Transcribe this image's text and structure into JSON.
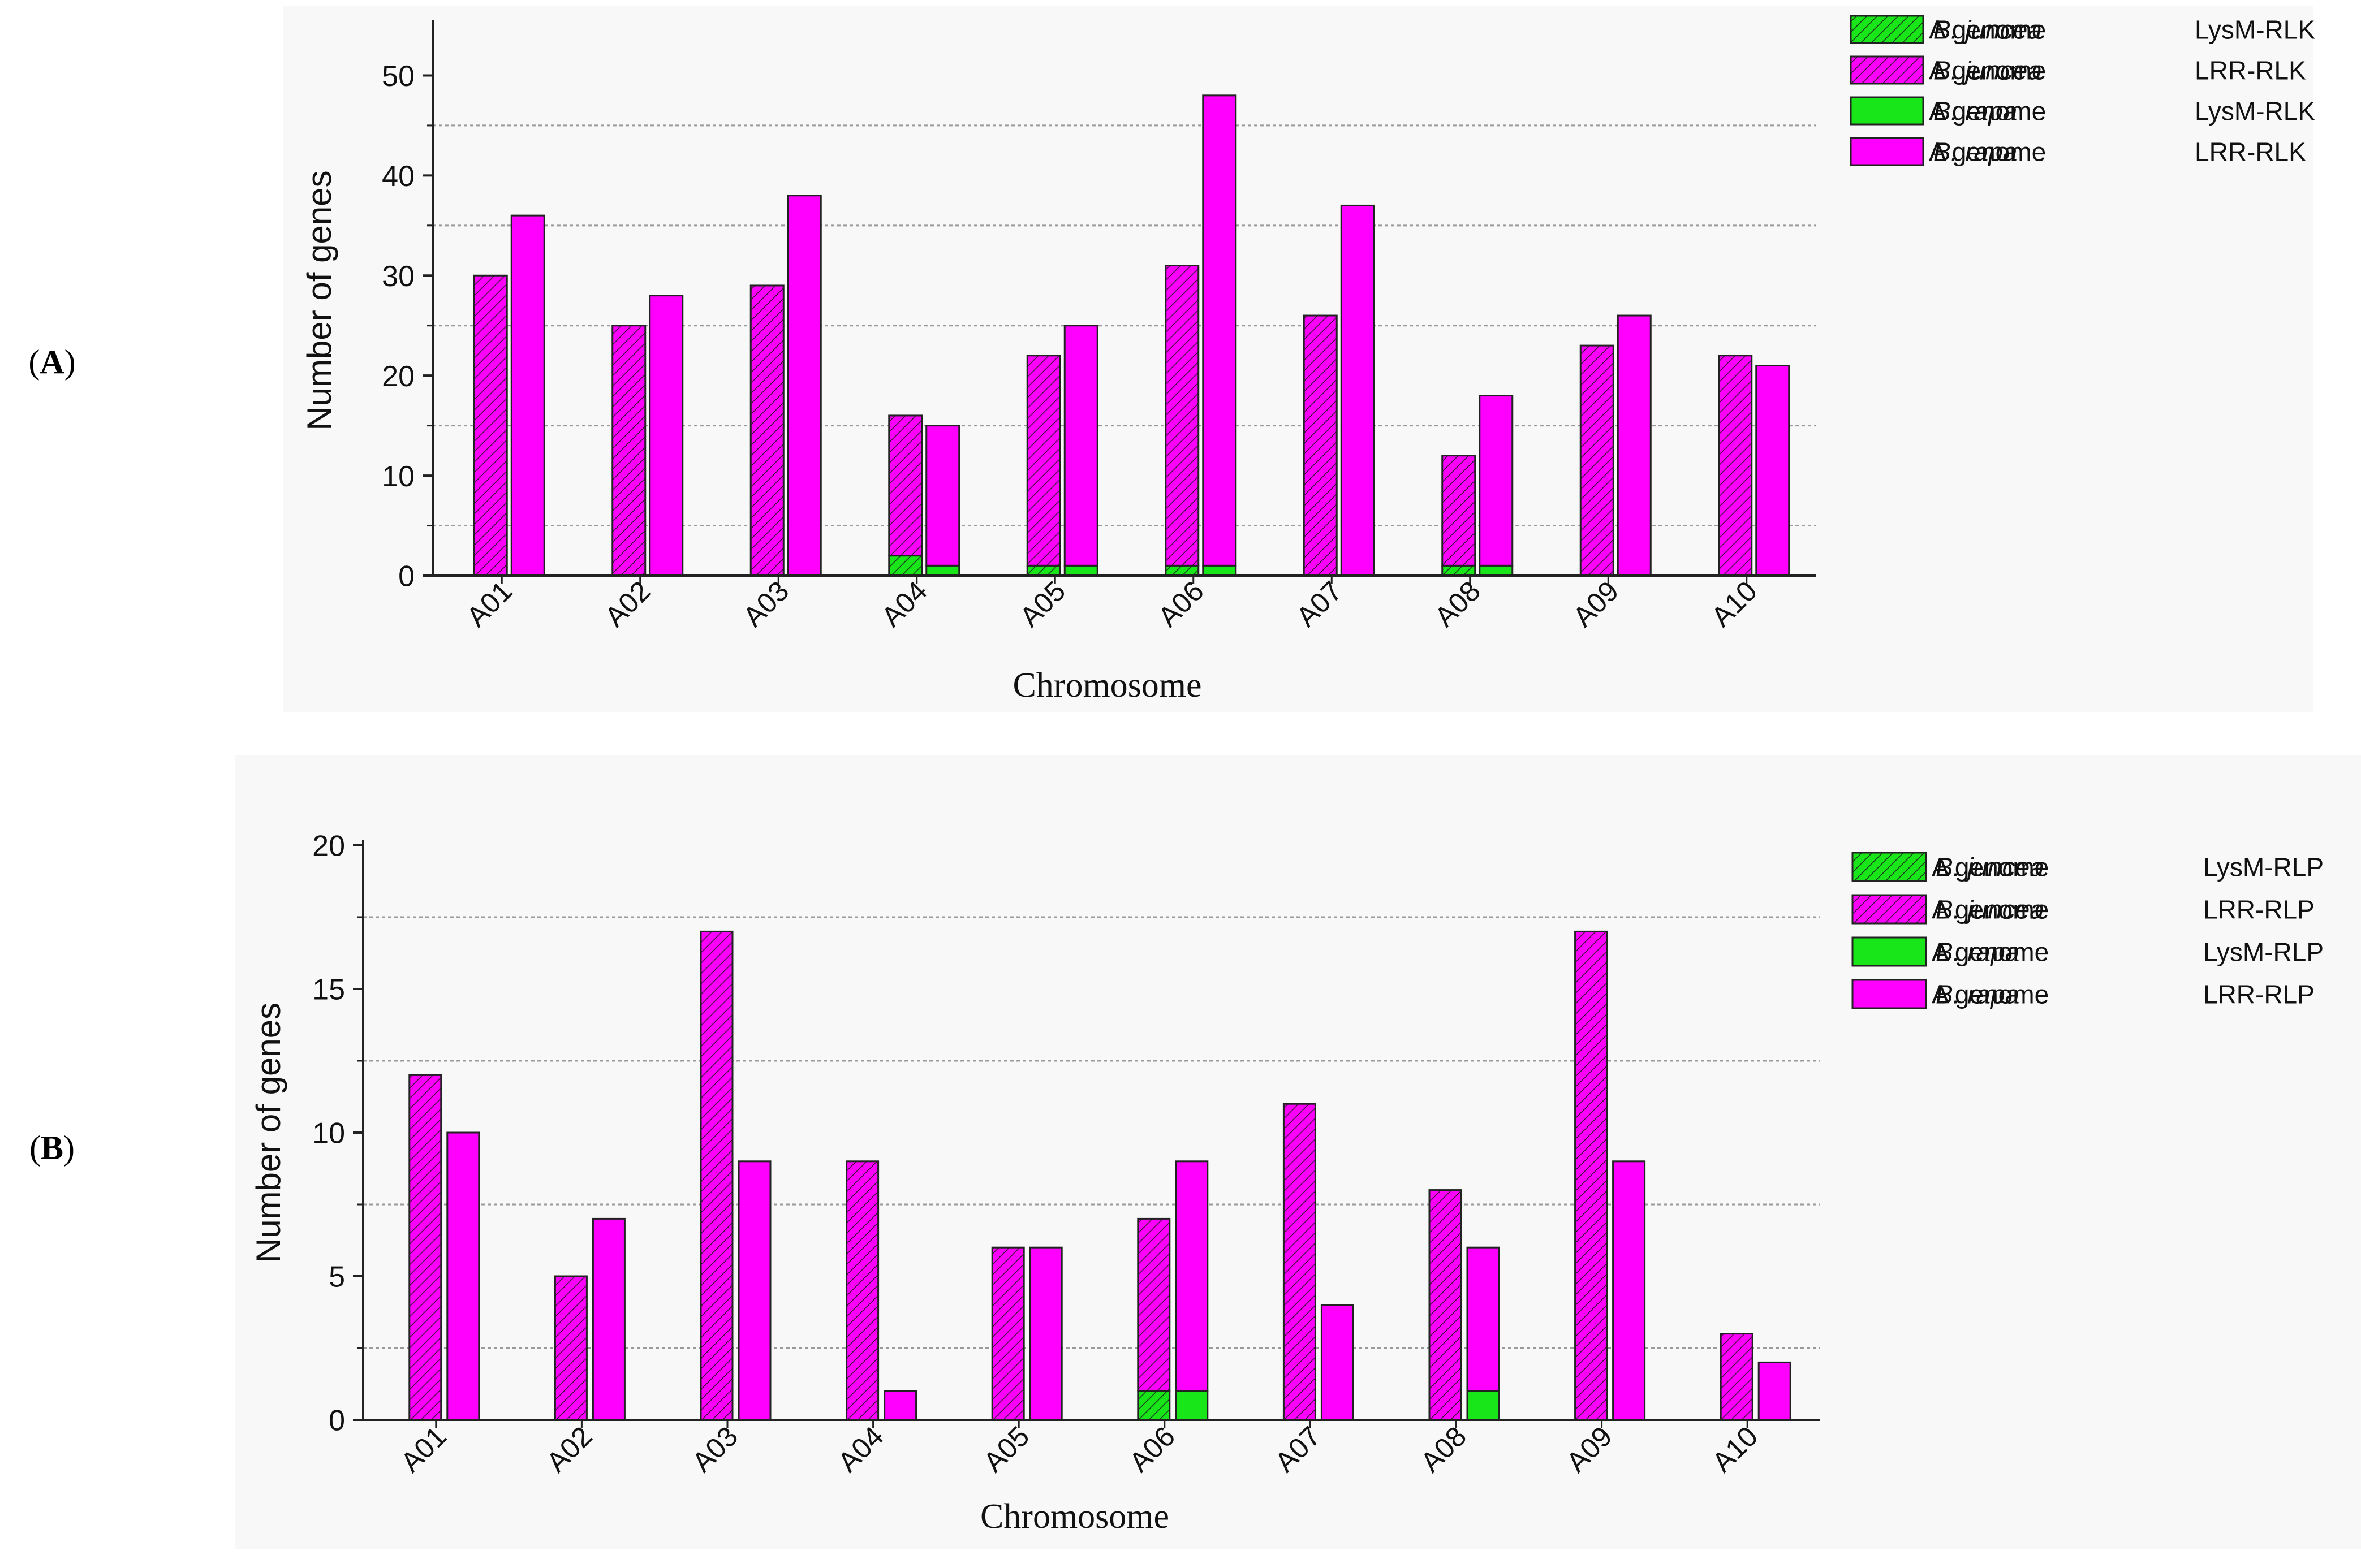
{
  "panels": [
    {
      "letter": "A",
      "paren_open": "(",
      "paren_close": ")"
    },
    {
      "letter": "B",
      "paren_open": "(",
      "paren_close": ")"
    }
  ],
  "colors": {
    "lysm": "#19e619",
    "lrr": "#ff00ff",
    "hatch": "#1a1a1a",
    "axis": "#222222",
    "grid": "#9a9a9a",
    "bg": "#f8f8f8"
  },
  "chart_data": [
    {
      "type": "bar",
      "stacked": true,
      "title": "",
      "xlabel": "Chromosome",
      "ylabel": "Number of genes",
      "ylim": [
        0,
        55
      ],
      "yticks": [
        0,
        10,
        20,
        30,
        40,
        50
      ],
      "gridlines": [
        5,
        15,
        25,
        35,
        45
      ],
      "categories": [
        "A01",
        "A02",
        "A03",
        "A04",
        "A05",
        "A06",
        "A07",
        "A08",
        "A09",
        "A10"
      ],
      "legend_position": "top-right",
      "legend": [
        {
          "prefix": "A genome ",
          "species": "B. juncea",
          "gene": "LysM-RLK",
          "hatched": true,
          "color_key": "lysm"
        },
        {
          "prefix": "A genome ",
          "species": "B. juncea",
          "gene": "LRR-RLK",
          "hatched": true,
          "color_key": "lrr"
        },
        {
          "prefix": "A genome ",
          "species": "B. rapa",
          "gene": "LysM-RLK",
          "hatched": false,
          "color_key": "lysm"
        },
        {
          "prefix": "A genome ",
          "species": "B. rapa",
          "gene": "LRR-RLK",
          "hatched": false,
          "color_key": "lrr"
        }
      ],
      "series": [
        {
          "name": "A genome B. juncea LysM-RLK",
          "stack": "juncea",
          "values": [
            0,
            0,
            0,
            2,
            1,
            1,
            0,
            1,
            0,
            0
          ]
        },
        {
          "name": "A genome B. juncea LRR-RLK",
          "stack": "juncea",
          "values": [
            30,
            25,
            29,
            14,
            21,
            30,
            26,
            11,
            23,
            22
          ]
        },
        {
          "name": "A genome B. rapa LysM-RLK",
          "stack": "rapa",
          "values": [
            0,
            0,
            0,
            1,
            1,
            1,
            0,
            1,
            0,
            0
          ]
        },
        {
          "name": "A genome B. rapa LRR-RLK",
          "stack": "rapa",
          "values": [
            36,
            28,
            38,
            14,
            24,
            47,
            37,
            17,
            26,
            21
          ]
        }
      ]
    },
    {
      "type": "bar",
      "stacked": true,
      "title": "",
      "xlabel": "Chromosome",
      "ylabel": "Number of genes",
      "ylim": [
        0,
        20
      ],
      "yticks": [
        0,
        5,
        10,
        15,
        20
      ],
      "gridlines": [
        2.5,
        7.5,
        12.5,
        17.5
      ],
      "categories": [
        "A01",
        "A02",
        "A03",
        "A04",
        "A05",
        "A06",
        "A07",
        "A08",
        "A09",
        "A10"
      ],
      "legend_position": "top-right",
      "legend": [
        {
          "prefix": "A genome ",
          "species": "B. juncea",
          "gene": "LysM-RLP",
          "hatched": true,
          "color_key": "lysm"
        },
        {
          "prefix": "A genome ",
          "species": "B. juncea",
          "gene": "LRR-RLP",
          "hatched": true,
          "color_key": "lrr"
        },
        {
          "prefix": "A genome ",
          "species": "B. rapa",
          "gene": "LysM-RLP",
          "hatched": false,
          "color_key": "lysm"
        },
        {
          "prefix": "A genome ",
          "species": "B. rapa",
          "gene": "LRR-RLP",
          "hatched": false,
          "color_key": "lrr"
        }
      ],
      "series": [
        {
          "name": "A genome B. juncea LysM-RLP",
          "stack": "juncea",
          "values": [
            0,
            0,
            0,
            0,
            0,
            1,
            0,
            0,
            0,
            0
          ]
        },
        {
          "name": "A genome B. juncea LRR-RLP",
          "stack": "juncea",
          "values": [
            12,
            5,
            17,
            9,
            6,
            6,
            11,
            8,
            17,
            3
          ]
        },
        {
          "name": "A genome B. rapa LysM-RLP",
          "stack": "rapa",
          "values": [
            0,
            0,
            0,
            0,
            0,
            1,
            0,
            1,
            0,
            0
          ]
        },
        {
          "name": "A genome B. rapa LRR-RLP",
          "stack": "rapa",
          "values": [
            10,
            7,
            9,
            1,
            6,
            8,
            4,
            5,
            9,
            2
          ]
        }
      ]
    }
  ]
}
